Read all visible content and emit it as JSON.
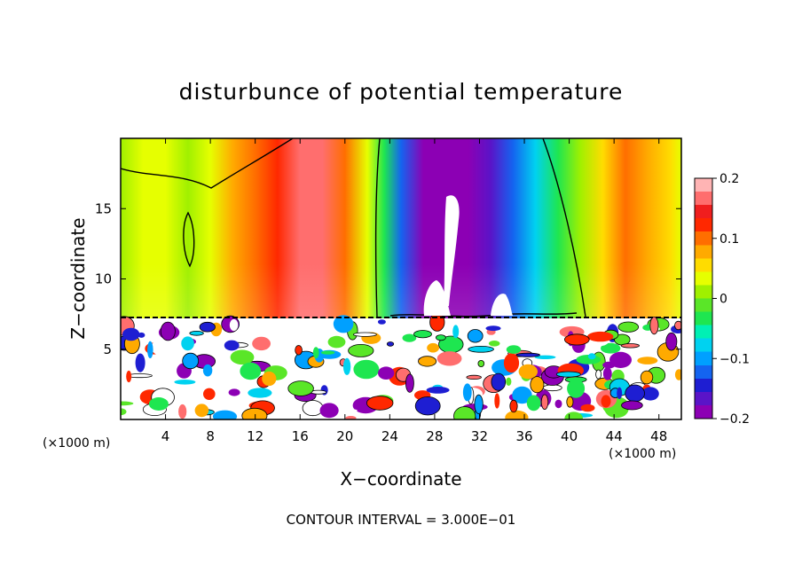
{
  "chart_data": {
    "type": "heatmap",
    "title": "disturbunce of potential temperature",
    "xlabel": "X−coordinate",
    "ylabel": "Z−coordinate",
    "x_unit_left": "(×1000 m)",
    "x_unit_right": "(×1000 m)",
    "xlim": [
      0,
      50
    ],
    "ylim": [
      0,
      20
    ],
    "x_ticks": [
      4,
      8,
      12,
      16,
      20,
      24,
      28,
      32,
      36,
      40,
      44,
      48
    ],
    "y_ticks": [
      5,
      10,
      15
    ],
    "colorbar": {
      "range": [
        -0.2,
        0.2
      ],
      "ticks": [
        0.2,
        0.1,
        0,
        -0.1,
        -0.2
      ],
      "tick_labels": [
        "0.2",
        "0.1",
        "0",
        "−0.1",
        "−0.2"
      ],
      "colors": [
        "#8c00b4",
        "#5a14c8",
        "#1e1ed2",
        "#1464f0",
        "#00a0ff",
        "#00d2f0",
        "#00f0b4",
        "#1ee650",
        "#5ae628",
        "#a0f000",
        "#e6ff00",
        "#ffdc00",
        "#ffaa00",
        "#ff6e00",
        "#ff2800",
        "#f01e1e",
        "#ff6e6e",
        "#ffb4b4"
      ]
    },
    "field_columns": [
      {
        "x": 0,
        "v": 0.02
      },
      {
        "x": 2,
        "v": 0.03
      },
      {
        "x": 4,
        "v": 0.025
      },
      {
        "x": 6,
        "v": 0.01
      },
      {
        "x": 8,
        "v": 0.04
      },
      {
        "x": 10,
        "v": 0.07
      },
      {
        "x": 12,
        "v": 0.1
      },
      {
        "x": 14,
        "v": 0.13
      },
      {
        "x": 16,
        "v": 0.17
      },
      {
        "x": 18,
        "v": 0.16
      },
      {
        "x": 20,
        "v": 0.1
      },
      {
        "x": 22,
        "v": 0.03
      },
      {
        "x": 23.5,
        "v": -0.04
      },
      {
        "x": 25,
        "v": -0.12
      },
      {
        "x": 27,
        "v": -0.18
      },
      {
        "x": 29,
        "v": -0.21
      },
      {
        "x": 31,
        "v": -0.2
      },
      {
        "x": 33,
        "v": -0.17
      },
      {
        "x": 35,
        "v": -0.12
      },
      {
        "x": 37,
        "v": -0.07
      },
      {
        "x": 39,
        "v": -0.03
      },
      {
        "x": 41,
        "v": 0.02
      },
      {
        "x": 43,
        "v": 0.06
      },
      {
        "x": 45,
        "v": 0.09
      },
      {
        "x": 47,
        "v": 0.08
      },
      {
        "x": 49,
        "v": 0.05
      },
      {
        "x": 50,
        "v": 0.04
      }
    ],
    "boundary_height": 7.2,
    "annotation": "CONTOUR INTERVAL = 3.000E−01"
  }
}
